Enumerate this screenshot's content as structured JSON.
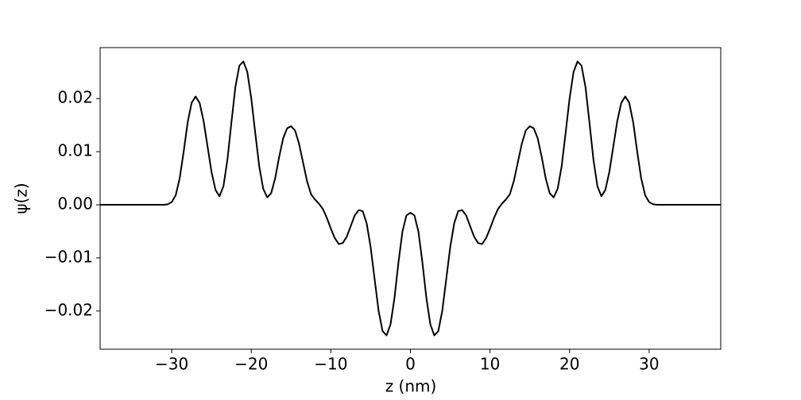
{
  "chart_data": {
    "type": "line",
    "x_label": "z (nm)",
    "y_label": "ψ(z)",
    "xlim": [
      -39,
      39
    ],
    "ylim": [
      -0.0272,
      0.0296
    ],
    "xticks": [
      {
        "value": -30,
        "label": "−30"
      },
      {
        "value": -20,
        "label": "−20"
      },
      {
        "value": -10,
        "label": "−10"
      },
      0,
      10,
      20,
      30
    ],
    "yticks": [
      {
        "value": -0.02,
        "label": "−0.02"
      },
      {
        "value": -0.01,
        "label": "−0.01"
      },
      {
        "value": 0,
        "label": "0.00"
      },
      0.01,
      0.02
    ],
    "x": [
      -39,
      -35,
      -31,
      -30.5,
      -30,
      -29.5,
      -29,
      -28.5,
      -28,
      -27.5,
      -27,
      -26.5,
      -26,
      -25.5,
      -25,
      -24.5,
      -24,
      -23.5,
      -23,
      -22.5,
      -22,
      -21.5,
      -21,
      -20.5,
      -20,
      -19.5,
      -19,
      -18.5,
      -18,
      -17.5,
      -17,
      -16.5,
      -16,
      -15.5,
      -15,
      -14.5,
      -14,
      -13.5,
      -13,
      -12.5,
      -12,
      -11.5,
      -11,
      -10.5,
      -10,
      -9.5,
      -9,
      -8.5,
      -8,
      -7.5,
      -7,
      -6.5,
      -6,
      -5.5,
      -5,
      -4.5,
      -4,
      -3.5,
      -3,
      -2.5,
      -2,
      -1.5,
      -1,
      -0.5,
      0,
      0.5,
      1,
      1.5,
      2,
      2.5,
      3,
      3.5,
      4,
      4.5,
      5,
      5.5,
      6,
      6.5,
      7,
      7.5,
      8,
      8.5,
      9,
      9.5,
      10,
      10.5,
      11,
      11.5,
      12,
      12.5,
      13,
      13.5,
      14,
      14.5,
      15,
      15.5,
      16,
      16.5,
      17,
      17.5,
      18,
      18.5,
      19,
      19.5,
      20,
      20.5,
      21,
      21.5,
      22,
      22.5,
      23,
      23.5,
      24,
      24.5,
      25,
      25.5,
      26,
      26.5,
      27,
      27.5,
      28,
      28.5,
      29,
      29.5,
      30,
      30.5,
      31,
      35,
      39
    ],
    "series": [
      {
        "color": "#000000",
        "values": [
          0,
          0,
          0,
          0.0001,
          0.0005,
          0.0018,
          0.005,
          0.01,
          0.0155,
          0.0192,
          0.0204,
          0.0192,
          0.0158,
          0.011,
          0.0062,
          0.0028,
          0.0016,
          0.0035,
          0.0085,
          0.0155,
          0.0222,
          0.0262,
          0.027,
          0.025,
          0.02,
          0.0135,
          0.0072,
          0.003,
          0.0014,
          0.0022,
          0.005,
          0.009,
          0.0125,
          0.0144,
          0.0148,
          0.014,
          0.0115,
          0.008,
          0.0045,
          0.002,
          0.001,
          0.0002,
          -0.0008,
          -0.0025,
          -0.0045,
          -0.0063,
          -0.0074,
          -0.0072,
          -0.006,
          -0.004,
          -0.002,
          -0.001,
          -0.0012,
          -0.0035,
          -0.008,
          -0.014,
          -0.02,
          -0.0238,
          -0.0246,
          -0.0225,
          -0.0175,
          -0.0108,
          -0.005,
          -0.002,
          -0.0015,
          -0.002,
          -0.005,
          -0.0108,
          -0.0175,
          -0.0225,
          -0.0246,
          -0.0238,
          -0.02,
          -0.014,
          -0.008,
          -0.0035,
          -0.0012,
          -0.001,
          -0.002,
          -0.004,
          -0.006,
          -0.0072,
          -0.0074,
          -0.0063,
          -0.0045,
          -0.0025,
          -0.0008,
          0.0002,
          0.001,
          0.002,
          0.0045,
          0.008,
          0.0115,
          0.014,
          0.0148,
          0.0144,
          0.0125,
          0.009,
          0.005,
          0.0022,
          0.0014,
          0.003,
          0.0072,
          0.0135,
          0.02,
          0.025,
          0.027,
          0.0262,
          0.0222,
          0.0155,
          0.0085,
          0.0035,
          0.0016,
          0.0028,
          0.0062,
          0.011,
          0.0158,
          0.0192,
          0.0204,
          0.0192,
          0.0155,
          0.01,
          0.005,
          0.0018,
          0.0005,
          0.0001,
          0,
          0,
          0
        ]
      }
    ]
  }
}
